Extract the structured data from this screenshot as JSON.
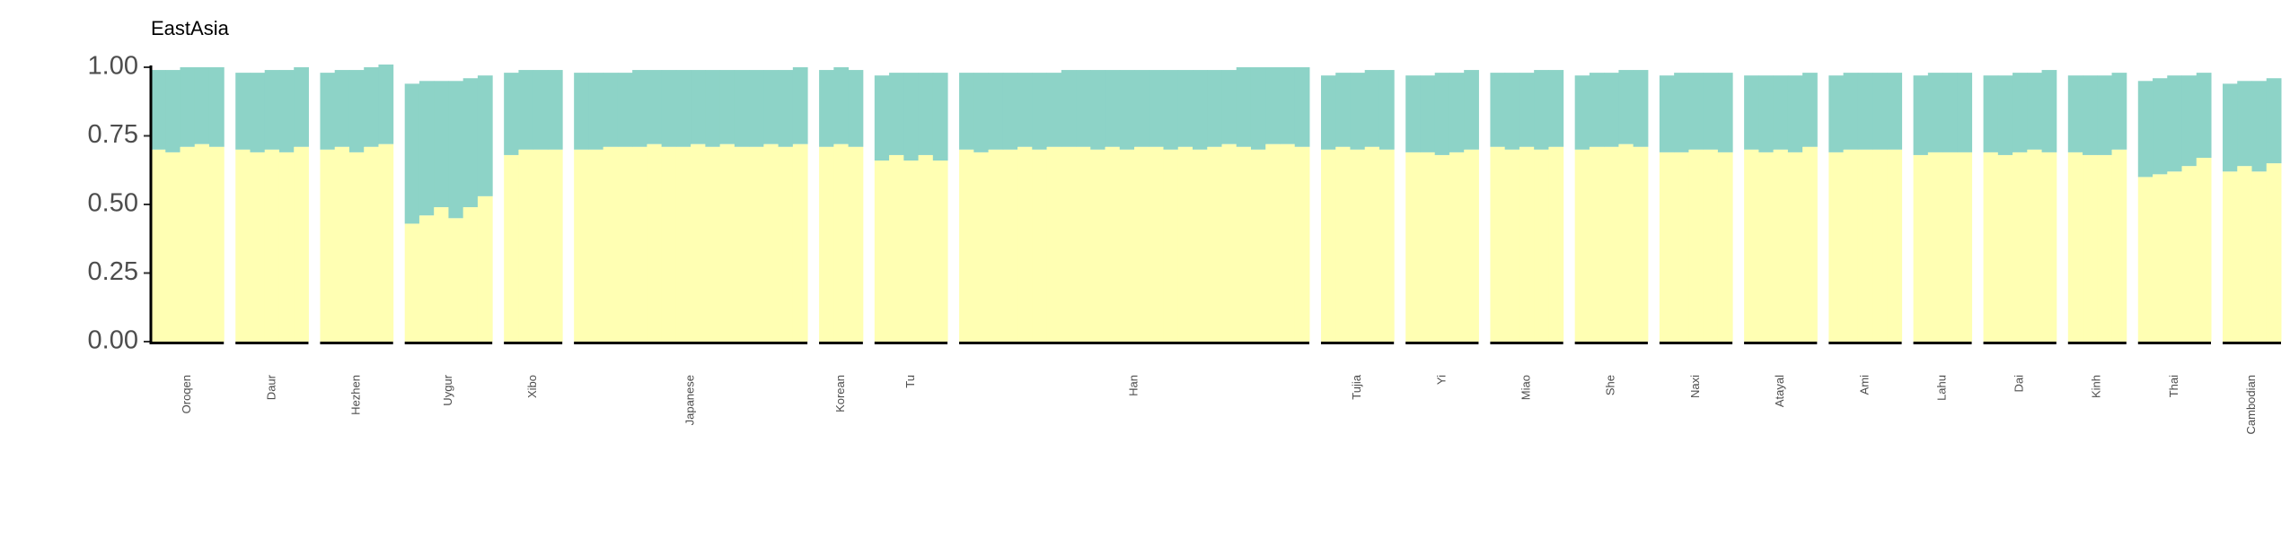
{
  "chart_data": {
    "type": "admixture",
    "title": "EastAsia",
    "ylim": [
      0,
      1
    ],
    "yticks": [
      {
        "value": 0,
        "label": "0.00"
      },
      {
        "value": 0.25,
        "label": "0.25"
      },
      {
        "value": 0.5,
        "label": "0.50"
      },
      {
        "value": 0.75,
        "label": "0.75"
      },
      {
        "value": 1,
        "label": "1.00"
      }
    ],
    "colors": [
      "#ffffb3",
      "#8dd3c7"
    ],
    "populations": [
      {
        "label": "Oroqen",
        "bottom": [
          0.7,
          0.69,
          0.71,
          0.72,
          0.71
        ],
        "top": [
          0.29,
          0.3,
          0.29,
          0.28,
          0.29
        ]
      },
      {
        "label": "Daur",
        "bottom": [
          0.7,
          0.69,
          0.7,
          0.69,
          0.71
        ],
        "top": [
          0.28,
          0.29,
          0.29,
          0.3,
          0.29
        ]
      },
      {
        "label": "Hezhen",
        "bottom": [
          0.7,
          0.71,
          0.69,
          0.71,
          0.72
        ],
        "top": [
          0.28,
          0.28,
          0.3,
          0.29,
          0.29
        ]
      },
      {
        "label": "Uygur",
        "bottom": [
          0.43,
          0.46,
          0.49,
          0.45,
          0.49,
          0.53
        ],
        "top": [
          0.51,
          0.49,
          0.46,
          0.5,
          0.47,
          0.44
        ]
      },
      {
        "label": "Xibo",
        "bottom": [
          0.68,
          0.7,
          0.7,
          0.7
        ],
        "top": [
          0.3,
          0.29,
          0.29,
          0.29
        ]
      },
      {
        "label": "Japanese",
        "bottom": [
          0.7,
          0.7,
          0.71,
          0.71,
          0.71,
          0.72,
          0.71,
          0.71,
          0.72,
          0.71,
          0.72,
          0.71,
          0.71,
          0.72,
          0.71,
          0.72
        ],
        "top": [
          0.28,
          0.28,
          0.27,
          0.27,
          0.28,
          0.27,
          0.28,
          0.28,
          0.27,
          0.28,
          0.27,
          0.28,
          0.28,
          0.27,
          0.28,
          0.28
        ]
      },
      {
        "label": "Korean",
        "bottom": [
          0.71,
          0.72,
          0.71
        ],
        "top": [
          0.28,
          0.28,
          0.28
        ]
      },
      {
        "label": "Tu",
        "bottom": [
          0.66,
          0.68,
          0.66,
          0.68,
          0.66
        ],
        "top": [
          0.31,
          0.3,
          0.32,
          0.3,
          0.32
        ]
      },
      {
        "label": "Han",
        "bottom": [
          0.7,
          0.69,
          0.7,
          0.7,
          0.71,
          0.7,
          0.71,
          0.71,
          0.71,
          0.7,
          0.71,
          0.7,
          0.71,
          0.71,
          0.7,
          0.71,
          0.7,
          0.71,
          0.72,
          0.71,
          0.7,
          0.72,
          0.72,
          0.71
        ],
        "top": [
          0.28,
          0.29,
          0.28,
          0.28,
          0.27,
          0.28,
          0.27,
          0.28,
          0.28,
          0.29,
          0.28,
          0.29,
          0.28,
          0.28,
          0.29,
          0.28,
          0.29,
          0.28,
          0.27,
          0.29,
          0.3,
          0.28,
          0.28,
          0.29
        ]
      },
      {
        "label": "Tujia",
        "bottom": [
          0.7,
          0.71,
          0.7,
          0.71,
          0.7
        ],
        "top": [
          0.27,
          0.27,
          0.28,
          0.28,
          0.29
        ]
      },
      {
        "label": "Yi",
        "bottom": [
          0.69,
          0.69,
          0.68,
          0.69,
          0.7
        ],
        "top": [
          0.28,
          0.28,
          0.3,
          0.29,
          0.29
        ]
      },
      {
        "label": "Miao",
        "bottom": [
          0.71,
          0.7,
          0.71,
          0.7,
          0.71
        ],
        "top": [
          0.27,
          0.28,
          0.27,
          0.29,
          0.28
        ]
      },
      {
        "label": "She",
        "bottom": [
          0.7,
          0.71,
          0.71,
          0.72,
          0.71
        ],
        "top": [
          0.27,
          0.27,
          0.27,
          0.27,
          0.28
        ]
      },
      {
        "label": "Naxi",
        "bottom": [
          0.69,
          0.69,
          0.7,
          0.7,
          0.69
        ],
        "top": [
          0.28,
          0.29,
          0.28,
          0.28,
          0.29
        ]
      },
      {
        "label": "Atayal",
        "bottom": [
          0.7,
          0.69,
          0.7,
          0.69,
          0.71
        ],
        "top": [
          0.27,
          0.28,
          0.27,
          0.28,
          0.27
        ]
      },
      {
        "label": "Ami",
        "bottom": [
          0.69,
          0.7,
          0.7,
          0.7,
          0.7
        ],
        "top": [
          0.28,
          0.28,
          0.28,
          0.28,
          0.28
        ]
      },
      {
        "label": "Lahu",
        "bottom": [
          0.68,
          0.69,
          0.69,
          0.69
        ],
        "top": [
          0.29,
          0.29,
          0.29,
          0.29
        ]
      },
      {
        "label": "Dai",
        "bottom": [
          0.69,
          0.68,
          0.69,
          0.7,
          0.69
        ],
        "top": [
          0.28,
          0.29,
          0.29,
          0.28,
          0.3
        ]
      },
      {
        "label": "Kinh",
        "bottom": [
          0.69,
          0.68,
          0.68,
          0.7
        ],
        "top": [
          0.28,
          0.29,
          0.29,
          0.28
        ]
      },
      {
        "label": "Thai",
        "bottom": [
          0.6,
          0.61,
          0.62,
          0.64,
          0.67
        ],
        "top": [
          0.35,
          0.35,
          0.35,
          0.33,
          0.31
        ]
      },
      {
        "label": "Cambodian",
        "bottom": [
          0.62,
          0.64,
          0.62,
          0.65
        ],
        "top": [
          0.32,
          0.31,
          0.33,
          0.31
        ]
      }
    ]
  }
}
